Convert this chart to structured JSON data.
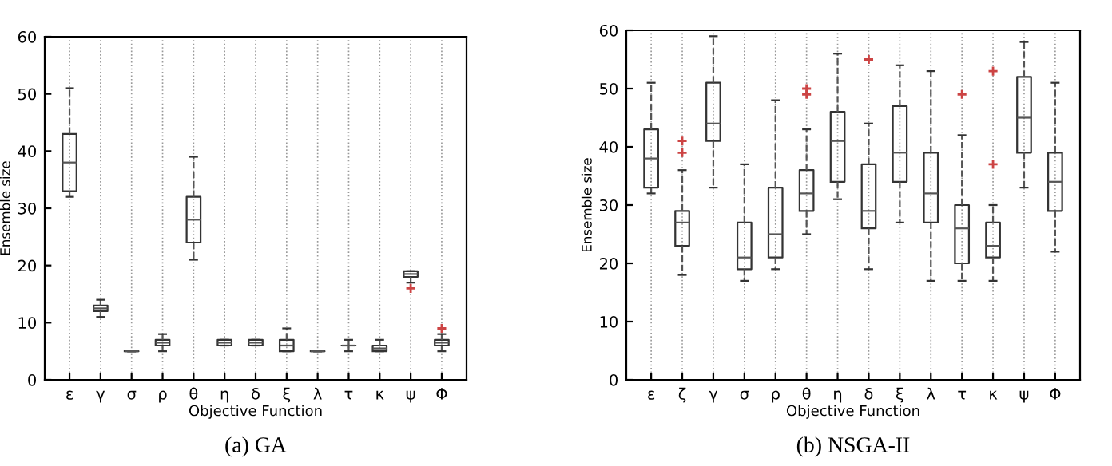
{
  "chart_data": [
    {
      "type": "box",
      "title": "(a) GA",
      "xlabel": "Objective Function",
      "ylabel": "Ensemble size",
      "categories": [
        "ε",
        "γ",
        "σ",
        "ρ",
        "θ",
        "η",
        "δ",
        "ξ",
        "λ",
        "τ",
        "κ",
        "ψ",
        "Φ"
      ],
      "boxes": [
        {
          "low": 32,
          "q1": 33,
          "median": 38,
          "q3": 43,
          "high": 51
        },
        {
          "low": 11,
          "q1": 12,
          "median": 12.5,
          "q3": 13,
          "high": 14
        },
        {
          "low": 5,
          "q1": 5,
          "median": 5,
          "q3": 5,
          "high": 5
        },
        {
          "low": 5,
          "q1": 6,
          "median": 6.5,
          "q3": 7,
          "high": 8
        },
        {
          "low": 21,
          "q1": 24,
          "median": 28,
          "q3": 32,
          "high": 39
        },
        {
          "low": 6,
          "q1": 6,
          "median": 6.5,
          "q3": 7,
          "high": 7
        },
        {
          "low": 6,
          "q1": 6,
          "median": 6.5,
          "q3": 7,
          "high": 7
        },
        {
          "low": 5,
          "q1": 5,
          "median": 6,
          "q3": 7,
          "high": 9
        },
        {
          "low": 5,
          "q1": 5,
          "median": 5,
          "q3": 5,
          "high": 5
        },
        {
          "low": 5,
          "q1": 6,
          "median": 6,
          "q3": 6,
          "high": 7
        },
        {
          "low": 5,
          "q1": 5,
          "median": 5.5,
          "q3": 6,
          "high": 7
        },
        {
          "low": 17,
          "q1": 18,
          "median": 18.5,
          "q3": 19,
          "high": 19,
          "outliers": [
            16
          ]
        },
        {
          "low": 5,
          "q1": 6,
          "median": 6.5,
          "q3": 7,
          "high": 8,
          "outliers": [
            9
          ]
        }
      ],
      "ylim": [
        0,
        60
      ],
      "yticks": [
        0,
        10,
        20,
        30,
        40,
        50,
        60
      ],
      "grid": "x"
    },
    {
      "type": "box",
      "title": "(b) NSGA-II",
      "xlabel": "Objective Function",
      "ylabel": "Ensemble size",
      "categories": [
        "ε",
        "ζ",
        "γ",
        "σ",
        "ρ",
        "θ",
        "η",
        "δ",
        "ξ",
        "λ",
        "τ",
        "κ",
        "ψ",
        "Φ"
      ],
      "boxes": [
        {
          "low": 32,
          "q1": 33,
          "median": 38,
          "q3": 43,
          "high": 51
        },
        {
          "low": 18,
          "q1": 23,
          "median": 27,
          "q3": 29,
          "high": 36,
          "outliers": [
            39,
            41
          ]
        },
        {
          "low": 33,
          "q1": 41,
          "median": 44,
          "q3": 51,
          "high": 59
        },
        {
          "low": 17,
          "q1": 19,
          "median": 21,
          "q3": 27,
          "high": 37
        },
        {
          "low": 19,
          "q1": 21,
          "median": 25,
          "q3": 33,
          "high": 48
        },
        {
          "low": 25,
          "q1": 29,
          "median": 32,
          "q3": 36,
          "high": 43,
          "outliers": [
            49,
            50
          ]
        },
        {
          "low": 31,
          "q1": 34,
          "median": 41,
          "q3": 46,
          "high": 56
        },
        {
          "low": 19,
          "q1": 26,
          "median": 29,
          "q3": 37,
          "high": 44,
          "outliers": [
            55
          ]
        },
        {
          "low": 27,
          "q1": 34,
          "median": 39,
          "q3": 47,
          "high": 54
        },
        {
          "low": 17,
          "q1": 27,
          "median": 32,
          "q3": 39,
          "high": 53
        },
        {
          "low": 17,
          "q1": 20,
          "median": 26,
          "q3": 30,
          "high": 42,
          "outliers": [
            49
          ]
        },
        {
          "low": 17,
          "q1": 21,
          "median": 23,
          "q3": 27,
          "high": 30,
          "outliers": [
            37,
            53
          ]
        },
        {
          "low": 33,
          "q1": 39,
          "median": 45,
          "q3": 52,
          "high": 58
        },
        {
          "low": 22,
          "q1": 29,
          "median": 34,
          "q3": 39,
          "high": 51
        }
      ],
      "ylim": [
        0,
        60
      ],
      "yticks": [
        0,
        10,
        20,
        30,
        40,
        50,
        60
      ],
      "grid": "x"
    }
  ]
}
